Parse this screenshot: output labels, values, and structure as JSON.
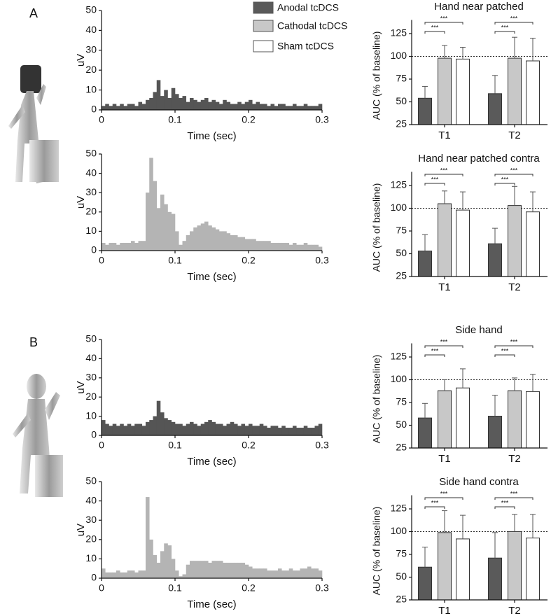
{
  "panel_labels": [
    "A",
    "B"
  ],
  "legend": [
    {
      "name": "Anodal tcDCS",
      "color": "#5a5a5a"
    },
    {
      "name": "Cathodal tcDCS",
      "color": "#c8c8c8"
    },
    {
      "name": "Sham tcDCS",
      "color": "#ffffff"
    }
  ],
  "chart_data": [
    {
      "type": "histogram",
      "xlabel": "Time (sec)",
      "ylabel": "uV",
      "color": "#555555",
      "bins": [
        0,
        0.005,
        0.01,
        0.015,
        0.02,
        0.025,
        0.03,
        0.035,
        0.04,
        0.045,
        0.05,
        0.055,
        0.06,
        0.065,
        0.07,
        0.075,
        0.08,
        0.085,
        0.09,
        0.095,
        0.1,
        0.105,
        0.11,
        0.115,
        0.12,
        0.125,
        0.13,
        0.135,
        0.14,
        0.145,
        0.15,
        0.155,
        0.16,
        0.165,
        0.17,
        0.175,
        0.18,
        0.185,
        0.19,
        0.195,
        0.2,
        0.205,
        0.21,
        0.215,
        0.22,
        0.225,
        0.23,
        0.235,
        0.24,
        0.245,
        0.25,
        0.255,
        0.26,
        0.265,
        0.27,
        0.275,
        0.28,
        0.285,
        0.29,
        0.295,
        0.3
      ],
      "values": [
        2,
        3,
        2,
        3,
        2,
        3,
        2,
        3,
        3,
        2,
        4,
        3,
        5,
        6,
        9,
        15,
        7,
        10,
        6,
        11,
        8,
        6,
        7,
        4,
        6,
        5,
        4,
        5,
        6,
        4,
        5,
        4,
        3,
        5,
        4,
        3,
        3,
        4,
        3,
        4,
        5,
        3,
        4,
        3,
        3,
        2,
        3,
        2,
        3,
        3,
        2,
        2,
        3,
        2,
        2,
        3,
        2,
        2,
        2,
        3
      ],
      "xlim": [
        0,
        0.3
      ],
      "ylim": [
        0,
        50
      ],
      "xticks": [
        0,
        0.1,
        0.2,
        0.3
      ],
      "yticks": [
        0,
        10,
        20,
        30,
        40,
        50
      ]
    },
    {
      "type": "histogram",
      "xlabel": "Time (sec)",
      "ylabel": "uV",
      "color": "#b4b4b4",
      "bins": [
        0,
        0.005,
        0.01,
        0.015,
        0.02,
        0.025,
        0.03,
        0.035,
        0.04,
        0.045,
        0.05,
        0.055,
        0.06,
        0.065,
        0.07,
        0.075,
        0.08,
        0.085,
        0.09,
        0.095,
        0.1,
        0.105,
        0.11,
        0.115,
        0.12,
        0.125,
        0.13,
        0.135,
        0.14,
        0.145,
        0.15,
        0.155,
        0.16,
        0.165,
        0.17,
        0.175,
        0.18,
        0.185,
        0.19,
        0.195,
        0.2,
        0.205,
        0.21,
        0.215,
        0.22,
        0.225,
        0.23,
        0.235,
        0.24,
        0.245,
        0.25,
        0.255,
        0.26,
        0.265,
        0.27,
        0.275,
        0.28,
        0.285,
        0.29,
        0.295,
        0.3
      ],
      "values": [
        4,
        3,
        4,
        4,
        3,
        4,
        4,
        4,
        5,
        4,
        5,
        5,
        30,
        48,
        36,
        22,
        29,
        24,
        20,
        19,
        10,
        3,
        5,
        8,
        10,
        12,
        13,
        14,
        15,
        13,
        12,
        11,
        10,
        10,
        9,
        8,
        8,
        7,
        7,
        6,
        6,
        6,
        5,
        5,
        5,
        5,
        4,
        4,
        4,
        4,
        4,
        3,
        4,
        3,
        3,
        4,
        3,
        3,
        3,
        2
      ],
      "xlim": [
        0,
        0.3
      ],
      "ylim": [
        0,
        50
      ],
      "xticks": [
        0,
        0.1,
        0.2,
        0.3
      ],
      "yticks": [
        0,
        10,
        20,
        30,
        40,
        50
      ]
    },
    {
      "type": "histogram",
      "xlabel": "Time (sec)",
      "ylabel": "uV",
      "color": "#555555",
      "bins": [
        0,
        0.005,
        0.01,
        0.015,
        0.02,
        0.025,
        0.03,
        0.035,
        0.04,
        0.045,
        0.05,
        0.055,
        0.06,
        0.065,
        0.07,
        0.075,
        0.08,
        0.085,
        0.09,
        0.095,
        0.1,
        0.105,
        0.11,
        0.115,
        0.12,
        0.125,
        0.13,
        0.135,
        0.14,
        0.145,
        0.15,
        0.155,
        0.16,
        0.165,
        0.17,
        0.175,
        0.18,
        0.185,
        0.19,
        0.195,
        0.2,
        0.205,
        0.21,
        0.215,
        0.22,
        0.225,
        0.23,
        0.235,
        0.24,
        0.245,
        0.25,
        0.255,
        0.26,
        0.265,
        0.27,
        0.275,
        0.28,
        0.285,
        0.29,
        0.295,
        0.3
      ],
      "values": [
        8,
        6,
        5,
        6,
        5,
        6,
        5,
        6,
        5,
        6,
        6,
        5,
        7,
        8,
        10,
        18,
        12,
        9,
        8,
        7,
        6,
        6,
        5,
        6,
        7,
        6,
        5,
        6,
        7,
        8,
        7,
        6,
        6,
        5,
        6,
        7,
        6,
        5,
        6,
        5,
        6,
        5,
        5,
        6,
        5,
        4,
        5,
        5,
        4,
        5,
        4,
        4,
        5,
        4,
        4,
        5,
        4,
        4,
        5,
        6
      ],
      "xlim": [
        0,
        0.3
      ],
      "ylim": [
        0,
        50
      ],
      "xticks": [
        0,
        0.1,
        0.2,
        0.3
      ],
      "yticks": [
        0,
        10,
        20,
        30,
        40,
        50
      ]
    },
    {
      "type": "histogram",
      "xlabel": "Time (sec)",
      "ylabel": "uV",
      "color": "#b4b4b4",
      "bins": [
        0,
        0.005,
        0.01,
        0.015,
        0.02,
        0.025,
        0.03,
        0.035,
        0.04,
        0.045,
        0.05,
        0.055,
        0.06,
        0.065,
        0.07,
        0.075,
        0.08,
        0.085,
        0.09,
        0.095,
        0.1,
        0.105,
        0.11,
        0.115,
        0.12,
        0.125,
        0.13,
        0.135,
        0.14,
        0.145,
        0.15,
        0.155,
        0.16,
        0.165,
        0.17,
        0.175,
        0.18,
        0.185,
        0.19,
        0.195,
        0.2,
        0.205,
        0.21,
        0.215,
        0.22,
        0.225,
        0.23,
        0.235,
        0.24,
        0.245,
        0.25,
        0.255,
        0.26,
        0.265,
        0.27,
        0.275,
        0.28,
        0.285,
        0.29,
        0.295,
        0.3
      ],
      "values": [
        5,
        3,
        3,
        3,
        4,
        3,
        3,
        4,
        4,
        3,
        4,
        4,
        42,
        20,
        12,
        8,
        14,
        18,
        17,
        10,
        4,
        1,
        2,
        7,
        9,
        9,
        9,
        9,
        9,
        8,
        9,
        9,
        9,
        8,
        8,
        8,
        8,
        8,
        8,
        7,
        6,
        5,
        5,
        5,
        5,
        4,
        4,
        4,
        5,
        4,
        4,
        5,
        4,
        4,
        5,
        5,
        6,
        5,
        5,
        4
      ],
      "xlim": [
        0,
        0.3
      ],
      "ylim": [
        0,
        50
      ],
      "xticks": [
        0,
        0.1,
        0.2,
        0.3
      ],
      "yticks": [
        0,
        10,
        20,
        30,
        40,
        50
      ]
    },
    {
      "type": "bar",
      "title": "Hand near patched",
      "ylabel": "AUC (% of baseline)",
      "categories": [
        "T1",
        "T2"
      ],
      "series": [
        {
          "values": [
            54,
            59
          ],
          "errors": [
            13,
            20
          ]
        },
        {
          "values": [
            98,
            98
          ],
          "errors": [
            14,
            23
          ]
        },
        {
          "values": [
            97,
            95
          ],
          "errors": [
            13,
            25
          ]
        }
      ],
      "ylim": [
        25,
        140
      ],
      "yticks": [
        25,
        50,
        75,
        100,
        125
      ],
      "refline": 100,
      "brackets": [
        {
          "category": 0,
          "series": [
            0,
            1
          ],
          "label": "***"
        },
        {
          "category": 0,
          "series": [
            0,
            2
          ],
          "label": "***"
        },
        {
          "category": 1,
          "series": [
            0,
            1
          ],
          "label": "***"
        },
        {
          "category": 1,
          "series": [
            0,
            2
          ],
          "label": "***"
        }
      ]
    },
    {
      "type": "bar",
      "title": "Hand near patched contra",
      "ylabel": "AUC (% of baseline)",
      "categories": [
        "T1",
        "T2"
      ],
      "series": [
        {
          "values": [
            53,
            61
          ],
          "errors": [
            18,
            17
          ]
        },
        {
          "values": [
            105,
            103
          ],
          "errors": [
            14,
            21
          ]
        },
        {
          "values": [
            98,
            96
          ],
          "errors": [
            20,
            22
          ]
        }
      ],
      "ylim": [
        25,
        140
      ],
      "yticks": [
        25,
        50,
        75,
        100,
        125
      ],
      "refline": 100,
      "brackets": [
        {
          "category": 0,
          "series": [
            0,
            1
          ],
          "label": "***"
        },
        {
          "category": 0,
          "series": [
            0,
            2
          ],
          "label": "***"
        },
        {
          "category": 1,
          "series": [
            0,
            1
          ],
          "label": "***"
        },
        {
          "category": 1,
          "series": [
            0,
            2
          ],
          "label": "***"
        }
      ]
    },
    {
      "type": "bar",
      "title": "Side hand",
      "ylabel": "AUC (% of baseline)",
      "categories": [
        "T1",
        "T2"
      ],
      "series": [
        {
          "values": [
            58,
            60
          ],
          "errors": [
            16,
            23
          ]
        },
        {
          "values": [
            88,
            88
          ],
          "errors": [
            12,
            14
          ]
        },
        {
          "values": [
            91,
            87
          ],
          "errors": [
            21,
            19
          ]
        }
      ],
      "ylim": [
        25,
        140
      ],
      "yticks": [
        25,
        50,
        75,
        100,
        125
      ],
      "refline": 100,
      "brackets": [
        {
          "category": 0,
          "series": [
            0,
            1
          ],
          "label": "***"
        },
        {
          "category": 0,
          "series": [
            0,
            2
          ],
          "label": "***"
        },
        {
          "category": 1,
          "series": [
            0,
            1
          ],
          "label": "***"
        },
        {
          "category": 1,
          "series": [
            0,
            2
          ],
          "label": "***"
        }
      ]
    },
    {
      "type": "bar",
      "title": "Side hand contra",
      "ylabel": "AUC (% of baseline)",
      "categories": [
        "T1",
        "T2"
      ],
      "series": [
        {
          "values": [
            61,
            71
          ],
          "errors": [
            22,
            28
          ]
        },
        {
          "values": [
            99,
            100
          ],
          "errors": [
            24,
            19
          ]
        },
        {
          "values": [
            92,
            93
          ],
          "errors": [
            26,
            26
          ]
        }
      ],
      "ylim": [
        25,
        140
      ],
      "yticks": [
        25,
        50,
        75,
        100,
        125
      ],
      "refline": 100,
      "brackets": [
        {
          "category": 0,
          "series": [
            0,
            1
          ],
          "label": "***"
        },
        {
          "category": 0,
          "series": [
            0,
            2
          ],
          "label": "***"
        },
        {
          "category": 1,
          "series": [
            0,
            1
          ],
          "label": "***"
        },
        {
          "category": 1,
          "series": [
            0,
            2
          ],
          "label": "***"
        }
      ]
    }
  ]
}
